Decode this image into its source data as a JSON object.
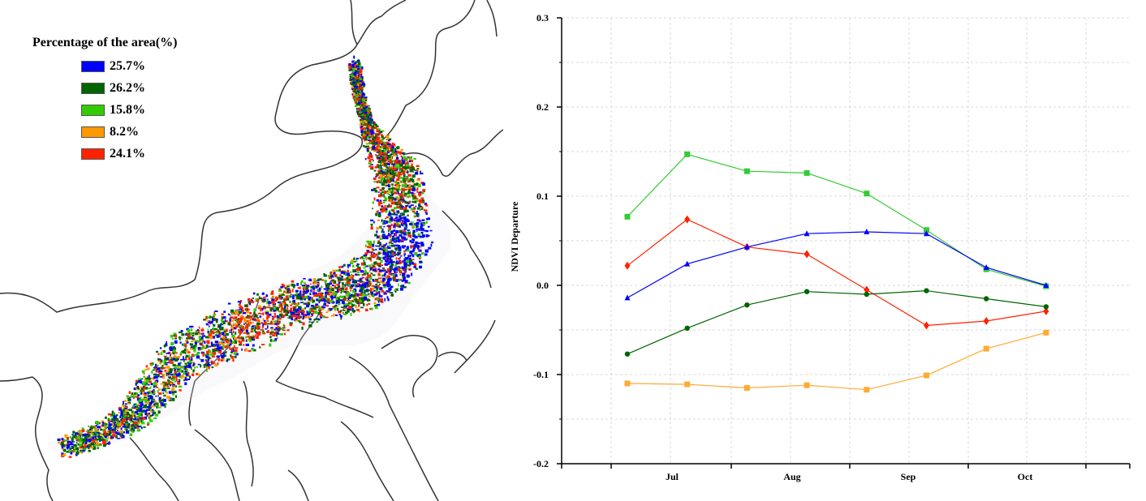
{
  "legend": {
    "title": "Percentage of the area(%)",
    "items": [
      {
        "label": "25.7%",
        "color": "#0000ff"
      },
      {
        "label": "26.2%",
        "color": "#006400"
      },
      {
        "label": "15.8%",
        "color": "#33cc00"
      },
      {
        "label": "8.2%",
        "color": "#ff9900"
      },
      {
        "label": "24.1%",
        "color": "#ff2200"
      }
    ]
  },
  "chart_data": {
    "type": "line",
    "title": "",
    "xlabel": "",
    "ylabel": "NDVI Departure",
    "ylim": [
      -0.2,
      0.3
    ],
    "yticks": [
      "-0.2",
      "-0.1",
      "0.0",
      "0.1",
      "0.2",
      "0.3"
    ],
    "x_month_labels": [
      "Jul",
      "Aug",
      "Sep",
      "Oct"
    ],
    "x_points": 8,
    "grid": true,
    "series": [
      {
        "color": "#33cc33",
        "marker": "square",
        "values": [
          0.077,
          0.147,
          0.128,
          0.126,
          0.103,
          0.062,
          0.018,
          -0.001
        ]
      },
      {
        "color": "#ff2200",
        "marker": "diamond",
        "values": [
          0.022,
          0.074,
          0.043,
          0.035,
          -0.005,
          -0.045,
          -0.04,
          -0.029
        ]
      },
      {
        "color": "#0000ff",
        "marker": "triangle",
        "values": [
          -0.014,
          0.024,
          0.043,
          0.058,
          0.06,
          0.058,
          0.02,
          0.0
        ]
      },
      {
        "color": "#006400",
        "marker": "circle",
        "values": [
          -0.077,
          -0.048,
          -0.022,
          -0.007,
          -0.01,
          -0.006,
          -0.015,
          -0.024
        ]
      },
      {
        "color": "#ffaa33",
        "marker": "square",
        "values": [
          -0.11,
          -0.111,
          -0.115,
          -0.112,
          -0.117,
          -0.101,
          -0.071,
          -0.053
        ]
      }
    ]
  }
}
